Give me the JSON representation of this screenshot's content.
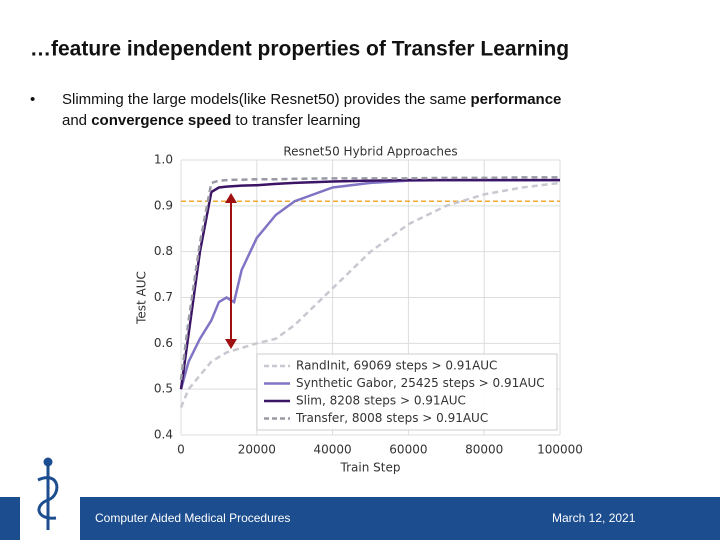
{
  "header": {
    "title": "…feature independent properties of Transfer Learning"
  },
  "bullet": {
    "line1_start": "Slimming the large models(like Resnet50) provides the same ",
    "line1_bold": "performance",
    "line2_start": "and ",
    "line2_bold": "convergence speed",
    "line2_end": " to transfer learning"
  },
  "chart_data": {
    "type": "line",
    "title": "Resnet50 Hybrid Approaches",
    "x_label": "Train Step",
    "y_label": "Test AUC",
    "x": [
      0,
      2000,
      5000,
      8000,
      10000,
      12000,
      14000,
      16000,
      20000,
      25000,
      30000,
      40000,
      50000,
      60000,
      70000,
      80000,
      90000,
      100000
    ],
    "series": [
      {
        "name": "RandInit, 69069 steps > 0.91AUC",
        "color": "#c8c8d0",
        "dash": true,
        "values": [
          0.46,
          0.5,
          0.53,
          0.56,
          0.57,
          0.58,
          0.585,
          0.59,
          0.6,
          0.61,
          0.64,
          0.72,
          0.8,
          0.86,
          0.9,
          0.925,
          0.94,
          0.95
        ]
      },
      {
        "name": "Synthetic Gabor, 25425 steps > 0.91AUC",
        "color": "#8074c4",
        "dash": false,
        "values": [
          0.5,
          0.56,
          0.61,
          0.65,
          0.69,
          0.7,
          0.69,
          0.76,
          0.83,
          0.88,
          0.91,
          0.94,
          0.95,
          0.955,
          0.956,
          0.956,
          0.956,
          0.956
        ]
      },
      {
        "name": "Slim, 8208 steps > 0.91AUC",
        "color": "#3b1466",
        "dash": false,
        "values": [
          0.5,
          0.62,
          0.8,
          0.93,
          0.94,
          0.942,
          0.943,
          0.944,
          0.945,
          0.948,
          0.95,
          0.953,
          0.955,
          0.956,
          0.956,
          0.956,
          0.956,
          0.956
        ]
      },
      {
        "name": "Transfer, 8008 steps > 0.91AUC",
        "color": "#9a9aa6",
        "dash": true,
        "values": [
          0.52,
          0.65,
          0.82,
          0.95,
          0.955,
          0.956,
          0.957,
          0.957,
          0.958,
          0.958,
          0.959,
          0.96,
          0.96,
          0.96,
          0.961,
          0.961,
          0.962,
          0.962
        ]
      }
    ],
    "threshold": 0.91,
    "threshold_color": "#f0a830",
    "xlim": [
      0,
      100000
    ],
    "xticks": [
      0,
      20000,
      40000,
      60000,
      80000,
      100000
    ],
    "ylim": [
      0.4,
      1.0
    ],
    "yticks": [
      0.4,
      0.5,
      0.6,
      0.7,
      0.8,
      0.9,
      {
        "value": 1,
        "label": "1.0"
      }
    ],
    "grid": true
  },
  "footer": {
    "left": "Computer Aided Medical Procedures",
    "right": "March 12, 2021"
  }
}
